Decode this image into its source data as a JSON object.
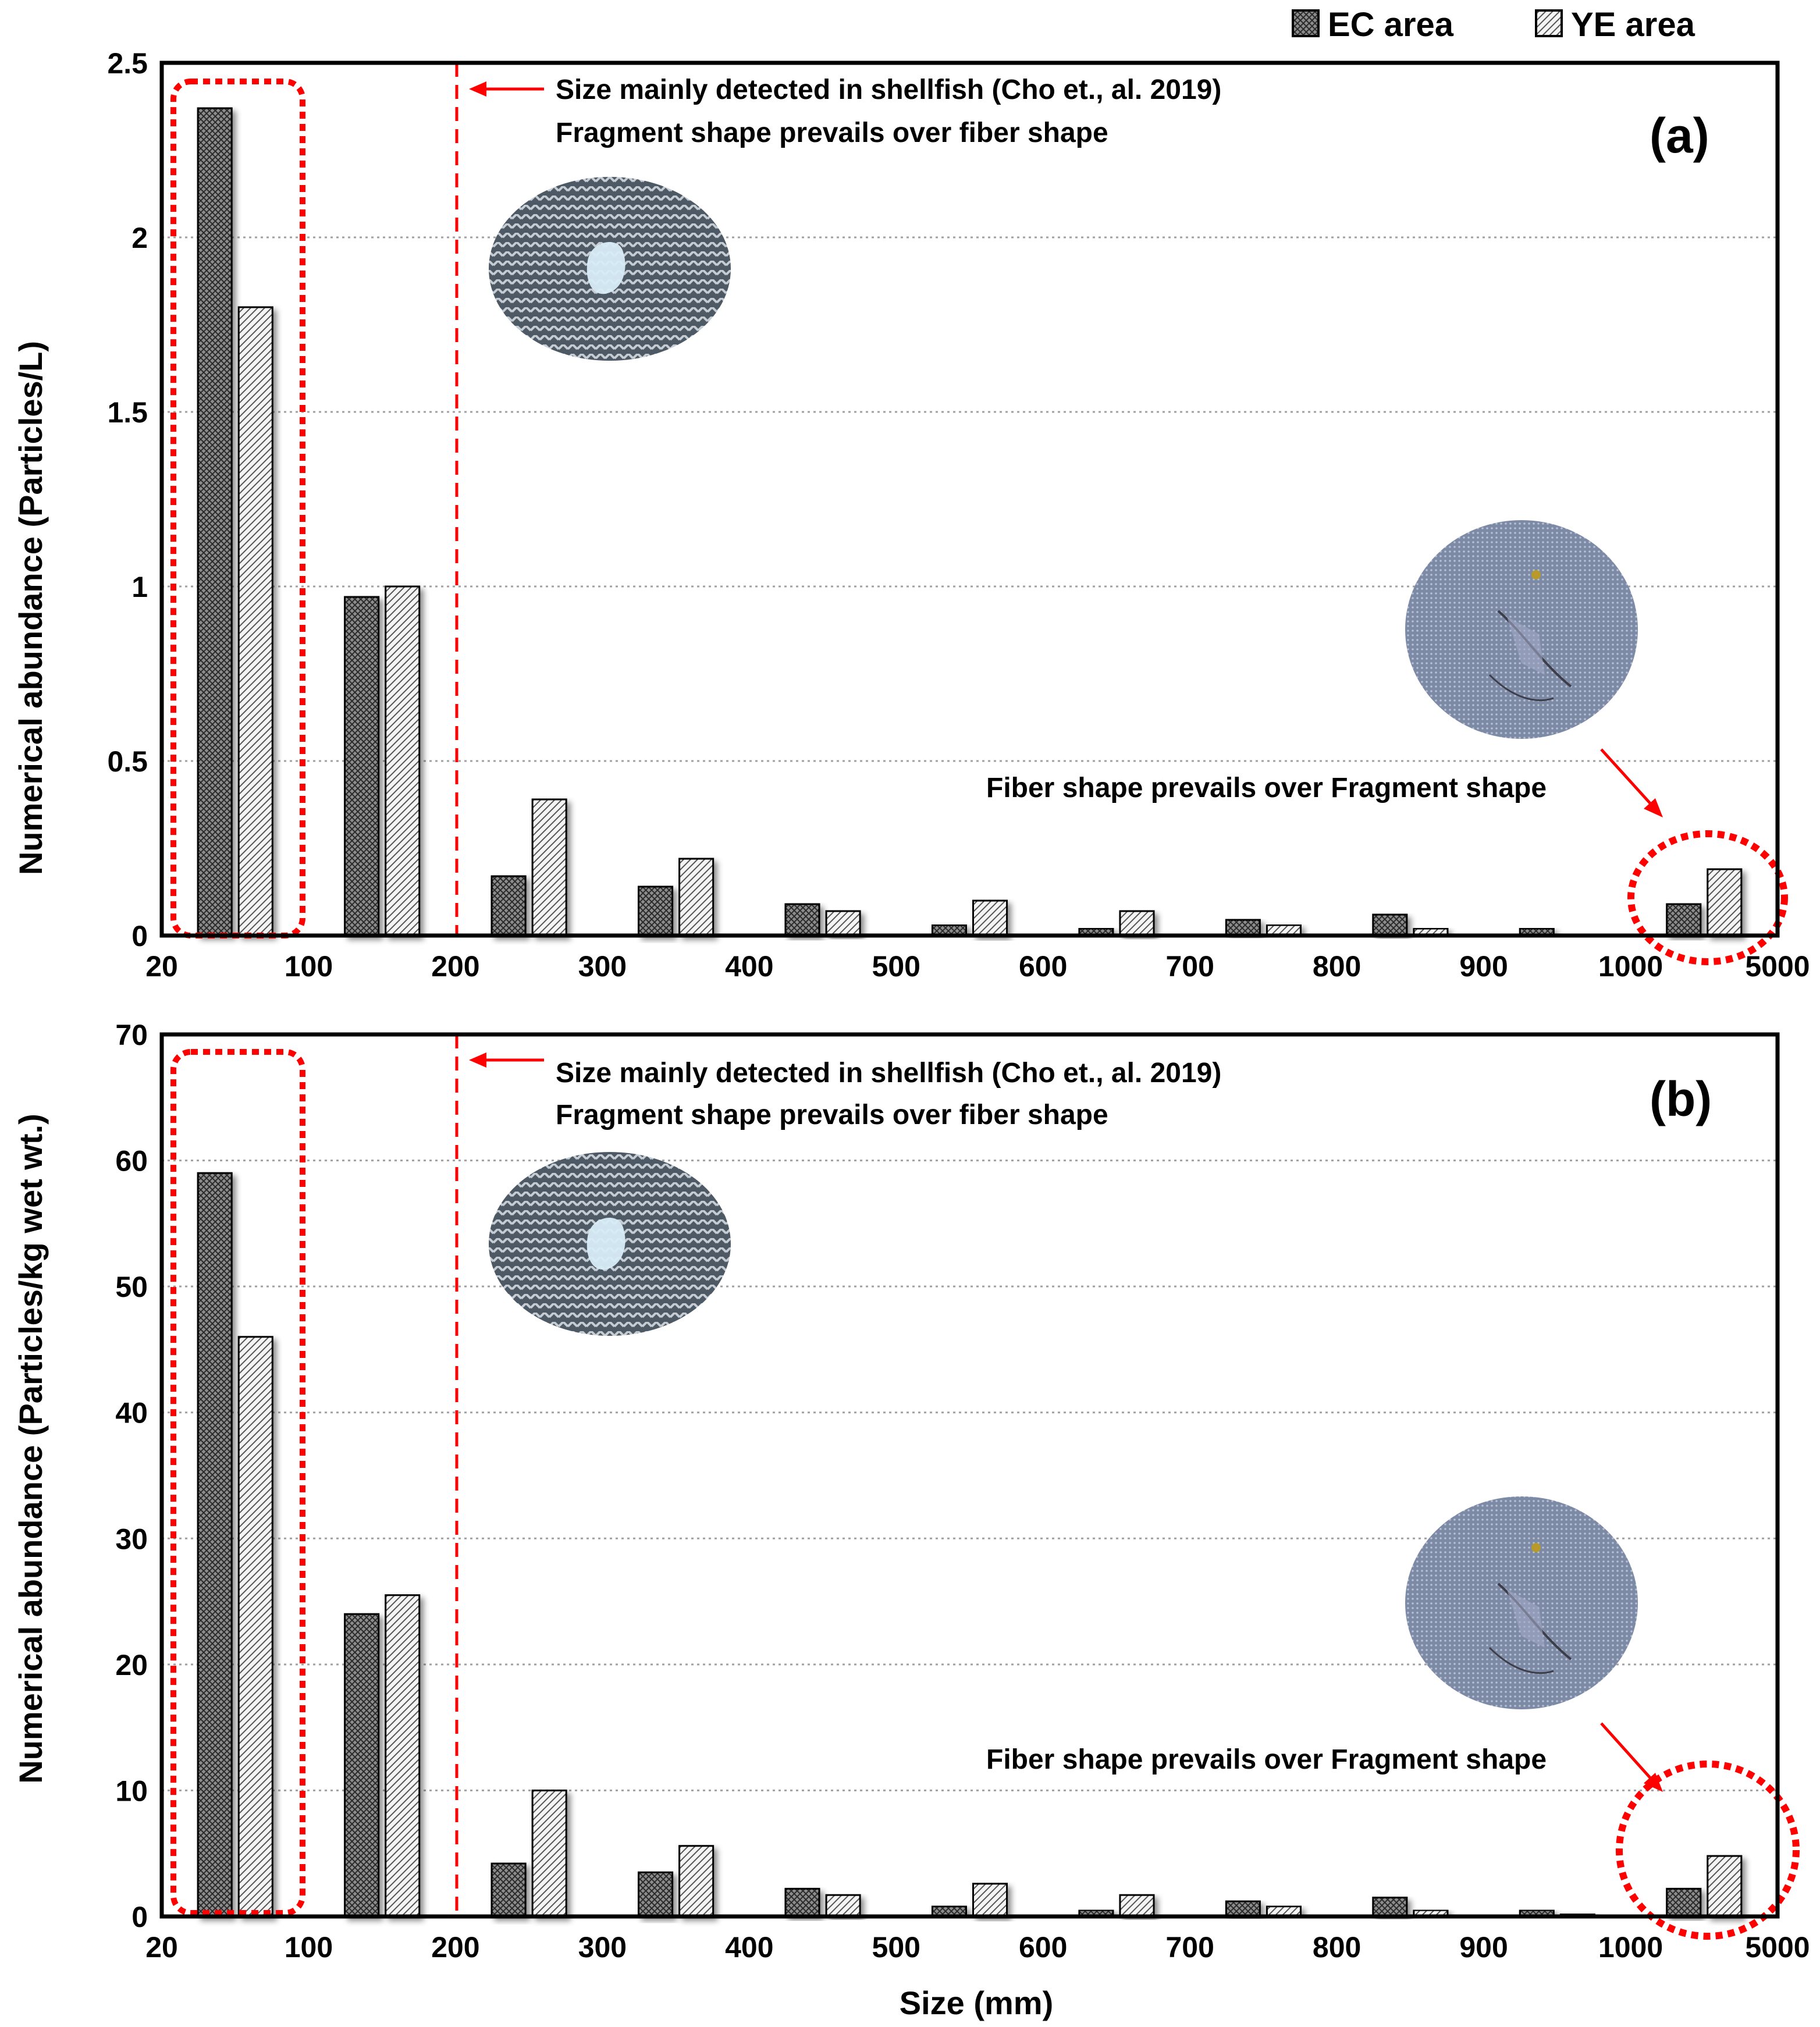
{
  "legend": {
    "ec": "EC area",
    "ye": "YE area"
  },
  "colors": {
    "annotation": "#ff0000",
    "grid": "#a0a0a0",
    "bar_ec": "#9a9a9a",
    "bar_ye": "#f0f0f0",
    "axis": "#000000"
  },
  "chart_data": [
    {
      "type": "bar",
      "panel_label": "(a)",
      "ylabel": "Numerical abundance (Particles/L)",
      "xlabel": "",
      "ylim": [
        0,
        2.5
      ],
      "yticks": [
        "0",
        "0.5",
        "1",
        "1.5",
        "2",
        "2.5"
      ],
      "ytick_values": [
        0,
        0.5,
        1,
        1.5,
        2,
        2.5
      ],
      "xtick_labels": [
        "20",
        "100",
        "200",
        "300",
        "400",
        "500",
        "600",
        "700",
        "800",
        "900",
        "1000",
        "5000"
      ],
      "series": [
        {
          "name": "EC area",
          "values": [
            2.37,
            0.97,
            0.17,
            0.14,
            0.09,
            0.03,
            0.02,
            0.045,
            0.06,
            0.02,
            0.09
          ]
        },
        {
          "name": "YE area",
          "values": [
            1.8,
            1.0,
            0.39,
            0.22,
            0.07,
            0.1,
            0.07,
            0.03,
            0.02,
            0.005,
            0.19
          ]
        }
      ],
      "annotations": {
        "arrow_text_line1": "Size mainly detected in shellfish (Cho et., al. 2019)",
        "arrow_text_line2": "Fragment shape prevails over fiber shape",
        "fiber_note": "Fiber shape prevails over Fragment shape"
      }
    },
    {
      "type": "bar",
      "panel_label": "(b)",
      "ylabel": "Numerical abundance (Particles/kg wet wt.)",
      "xlabel": "Size (mm)",
      "ylim": [
        0,
        70
      ],
      "yticks": [
        "0",
        "10",
        "20",
        "30",
        "40",
        "50",
        "60",
        "70"
      ],
      "ytick_values": [
        0,
        10,
        20,
        30,
        40,
        50,
        60,
        70
      ],
      "xtick_labels": [
        "20",
        "100",
        "200",
        "300",
        "400",
        "500",
        "600",
        "700",
        "800",
        "900",
        "1000",
        "5000"
      ],
      "series": [
        {
          "name": "EC area",
          "values": [
            59,
            24,
            4.2,
            3.5,
            2.2,
            0.8,
            0.5,
            1.2,
            1.5,
            0.5,
            2.2
          ]
        },
        {
          "name": "YE area",
          "values": [
            46,
            25.5,
            10,
            5.6,
            1.7,
            2.6,
            1.7,
            0.8,
            0.5,
            0.2,
            4.8
          ]
        }
      ],
      "annotations": {
        "arrow_text_line1": "Size mainly detected in shellfish (Cho et., al. 2019)",
        "arrow_text_line2": "Fragment shape prevails over fiber shape",
        "fiber_note": "Fiber shape prevails over Fragment shape"
      }
    }
  ]
}
